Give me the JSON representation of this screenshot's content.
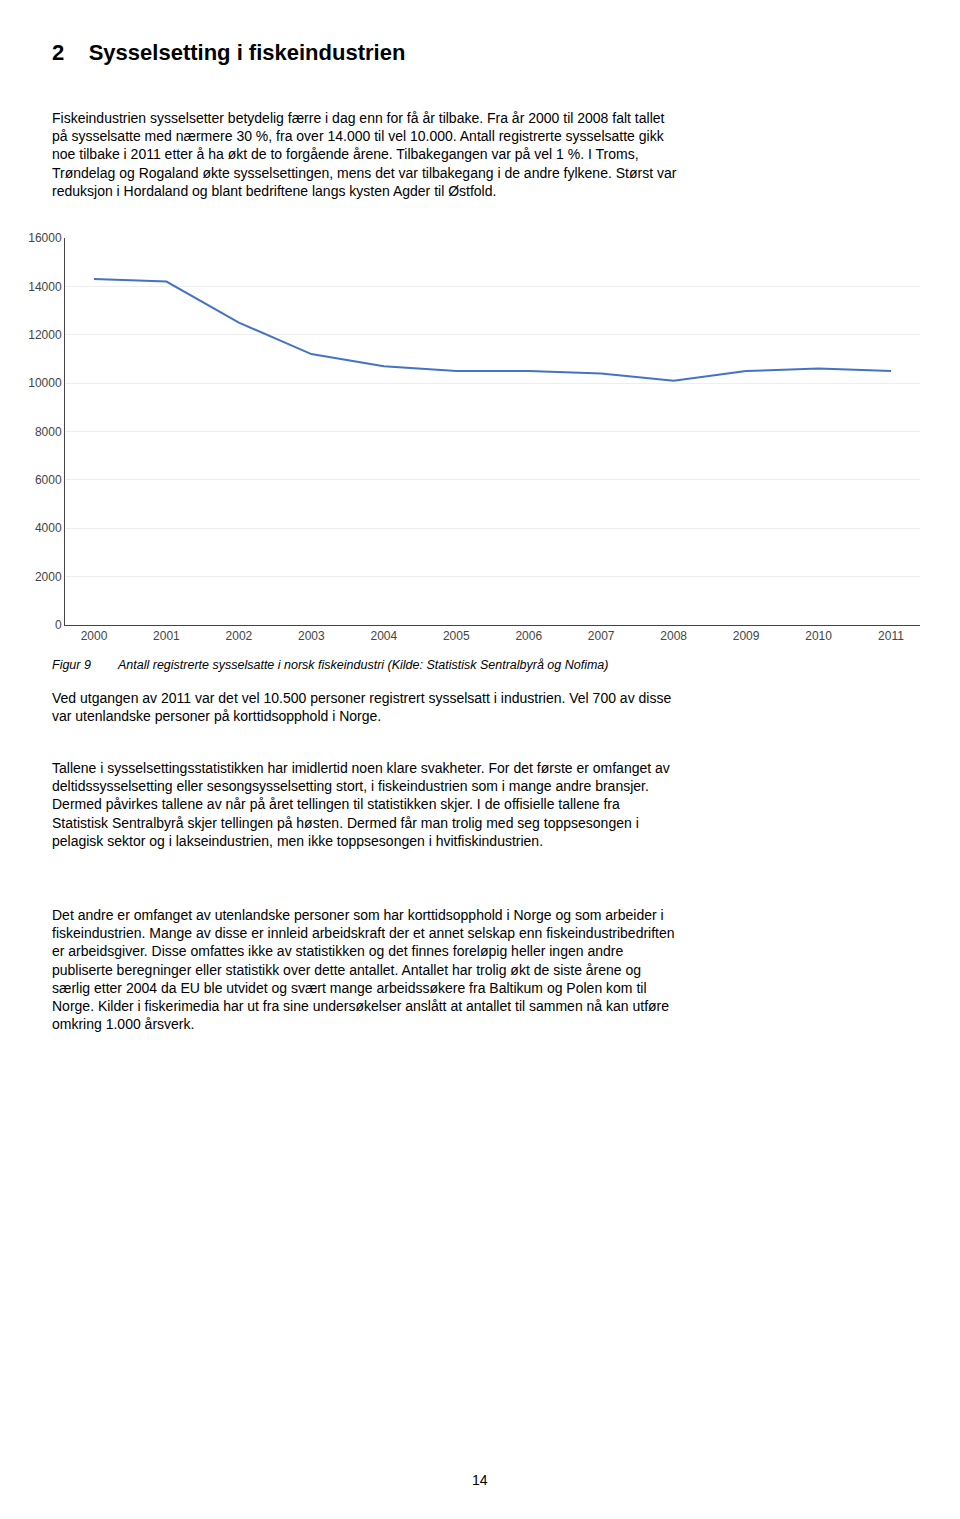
{
  "chart_data": {
    "type": "line",
    "x": [
      2000,
      2001,
      2002,
      2003,
      2004,
      2005,
      2006,
      2007,
      2008,
      2009,
      2010,
      2011
    ],
    "values": [
      14300,
      14200,
      12500,
      11200,
      10700,
      10500,
      10500,
      10400,
      10100,
      10500,
      10600,
      10500
    ],
    "color": "#4472c4",
    "xlim": [
      1999.6,
      2011.4
    ],
    "xticks": [
      2000,
      2001,
      2002,
      2003,
      2004,
      2005,
      2006,
      2007,
      2008,
      2009,
      2010,
      2011
    ],
    "ylim": [
      0,
      16000
    ],
    "yticks": [
      0,
      2000,
      4000,
      6000,
      8000,
      10000,
      12000,
      14000,
      16000
    ],
    "grid": true,
    "annotations": [
      "2    Sysselsetting i fiskeindustrien",
      "Fiskeindustrien sysselsetter betydelig færre i dag enn for få år tilbake. Fra år 2000 til 2008 falt tallet\npå sysselsatte med nærmere 30 %, fra over 14.000 til vel 10.000. Antall registrerte sysselsatte gikk\nnoe tilbake i 2011 etter å ha økt de to forgående årene. Tilbakegangen var på vel 1 %. I Troms,\nTrøndelag og Rogaland økte sysselsettingen, mens det var tilbakegang i de andre fylkene. Størst var\nreduksjon i Hordaland og blant bedriftene langs kysten Agder til Østfold.",
      "Figur 9",
      "Antall registrerte sysselsatte i norsk fiskeindustri (Kilde: Statistisk Sentralbyrå og Nofima)",
      "Ved utgangen av 2011 var det vel 10.500 personer registrert sysselsatt i industrien. Vel 700 av disse\nvar utenlandske personer på korttidsopphold i Norge.",
      "Tallene i sysselsettingsstatistikken har imidlertid noen klare svakheter. For det første er omfanget av\ndeltidssysselsetting eller sesongsysselsetting stort, i fiskeindustrien som i mange andre bransjer.\nDermed påvirkes tallene av når på året tellingen til statistikken skjer. I de offisielle tallene fra\nStatistisk Sentralbyrå skjer tellingen på høsten. Dermed får man trolig med seg toppsesongen i\npelagisk sektor og i lakseindustrien, men ikke toppsesongen i hvitfiskindustrien.",
      "Det andre er omfanget av utenlandske personer som har korttidsopphold i Norge og som arbeider i\nfiskeindustrien. Mange av disse er innleid arbeidskraft der et annet selskap enn fiskeindustribedriften\ner arbeidsgiver. Disse omfattes ikke av statistikken og det finnes foreløpig heller ingen andre\npubliserte beregninger eller statistikk over dette antallet. Antallet har trolig økt de siste årene og\nsærlig etter 2004 da EU ble utvidet og svært mange arbeidssøkere fra Baltikum og Polen kom til\nNorge. Kilder i fiskerimedia har ut fra sine undersøkelser anslått at antallet til sammen nå kan utføre\nomkring 1.000 årsverk.",
      "14"
    ]
  }
}
